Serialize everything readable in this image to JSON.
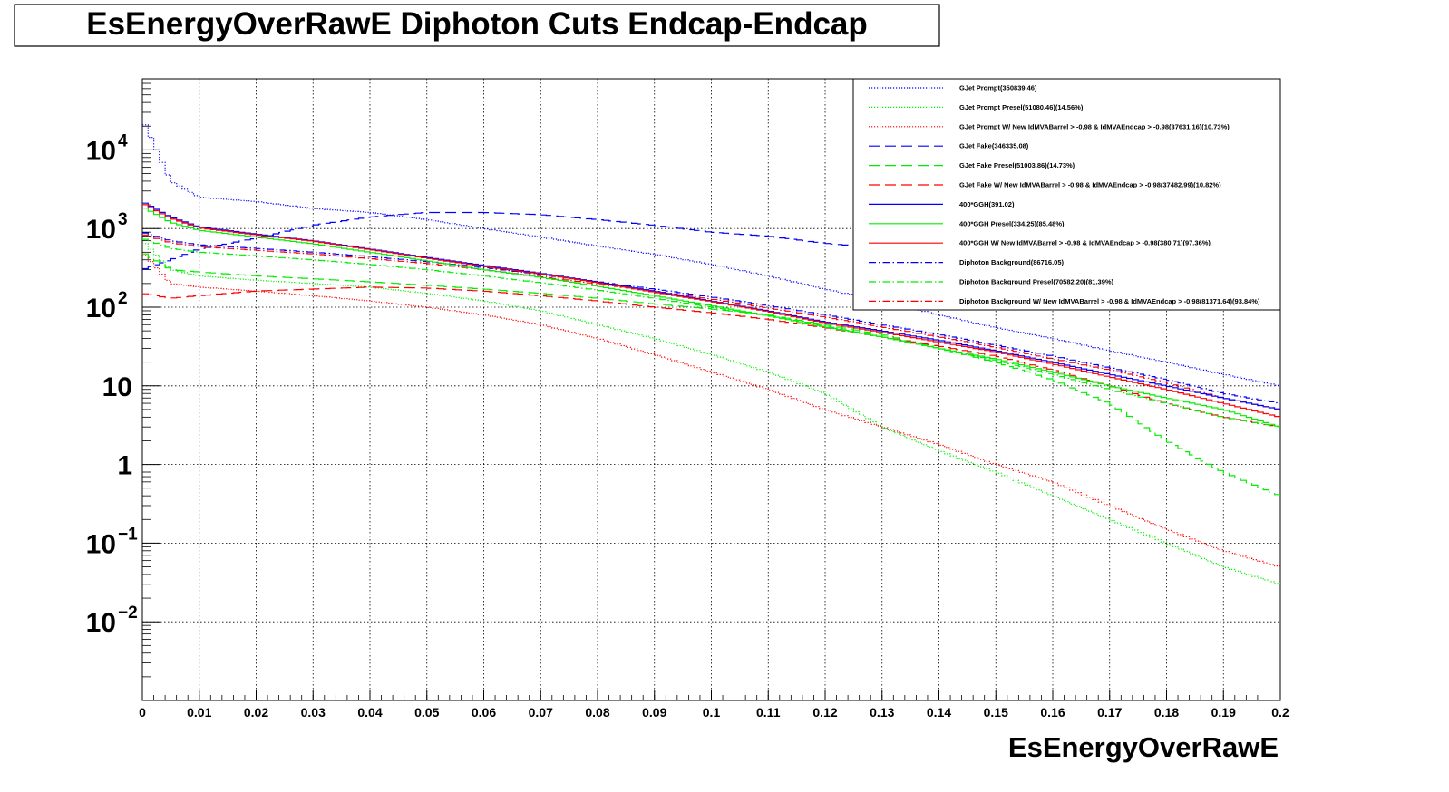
{
  "title": "EsEnergyOverRawE Diphoton Cuts Endcap-Endcap",
  "chart_data": {
    "type": "line",
    "subtype": "histogram-step",
    "title": "EsEnergyOverRawE Diphoton Cuts Endcap-Endcap",
    "xlabel": "EsEnergyOverRawE",
    "ylabel": "",
    "xlim": [
      0,
      0.2
    ],
    "ylim": [
      0.001,
      80000
    ],
    "yscale": "log",
    "grid": true,
    "legend_position": "top-right",
    "x_ticks": [
      "0",
      "0.01",
      "0.02",
      "0.03",
      "0.04",
      "0.05",
      "0.06",
      "0.07",
      "0.08",
      "0.09",
      "0.1",
      "0.11",
      "0.12",
      "0.13",
      "0.14",
      "0.15",
      "0.16",
      "0.17",
      "0.18",
      "0.19",
      "0.2"
    ],
    "y_ticks": [
      {
        "base": "10",
        "exp": "4",
        "value": 10000
      },
      {
        "base": "10",
        "exp": "3",
        "value": 1000
      },
      {
        "base": "10",
        "exp": "2",
        "value": 100
      },
      {
        "base": "10",
        "exp": "",
        "value": 10
      },
      {
        "base": "1",
        "exp": "",
        "value": 1
      },
      {
        "base": "10",
        "exp": "−1",
        "value": 0.1
      },
      {
        "base": "10",
        "exp": "−2",
        "value": 0.01
      }
    ],
    "series": [
      {
        "name": "GJet Prompt(350839.46)",
        "color": "#0000ff",
        "style": "dotted",
        "x": [
          0,
          0.005,
          0.01,
          0.02,
          0.03,
          0.04,
          0.05,
          0.06,
          0.07,
          0.08,
          0.09,
          0.1,
          0.11,
          0.12,
          0.13,
          0.14,
          0.15,
          0.16,
          0.17,
          0.18,
          0.19,
          0.2
        ],
        "y": [
          25000,
          4000,
          2500,
          2200,
          1800,
          1600,
          1300,
          1000,
          780,
          600,
          470,
          350,
          250,
          170,
          120,
          80,
          55,
          40,
          28,
          20,
          14,
          10
        ]
      },
      {
        "name": "GJet Prompt Presel(51080.46)(14.56%)",
        "color": "#00ee00",
        "style": "dotted",
        "x": [
          0,
          0.005,
          0.01,
          0.02,
          0.03,
          0.04,
          0.05,
          0.06,
          0.07,
          0.08,
          0.09,
          0.1,
          0.11,
          0.12,
          0.13,
          0.14,
          0.15,
          0.16,
          0.17,
          0.18,
          0.19,
          0.2
        ],
        "y": [
          700,
          300,
          250,
          220,
          200,
          180,
          150,
          120,
          90,
          60,
          40,
          25,
          15,
          8,
          3,
          1.5,
          0.8,
          0.4,
          0.2,
          0.1,
          0.05,
          0.03
        ]
      },
      {
        "name": "GJet Prompt W/ New IdMVABarrel > -0.98 & IdMVAEndcap > -0.98(37631.16)(10.73%)",
        "color": "#ff0000",
        "style": "dotted",
        "x": [
          0,
          0.005,
          0.01,
          0.02,
          0.03,
          0.04,
          0.05,
          0.06,
          0.07,
          0.08,
          0.09,
          0.1,
          0.11,
          0.12,
          0.13,
          0.14,
          0.15,
          0.16,
          0.17,
          0.18,
          0.19,
          0.2
        ],
        "y": [
          500,
          200,
          180,
          160,
          140,
          120,
          100,
          80,
          60,
          40,
          25,
          15,
          9,
          5,
          3,
          1.8,
          1,
          0.6,
          0.3,
          0.15,
          0.08,
          0.05
        ]
      },
      {
        "name": "GJet Fake(346335.08)",
        "color": "#0000ff",
        "style": "longdash",
        "x": [
          0,
          0.005,
          0.01,
          0.02,
          0.03,
          0.04,
          0.05,
          0.06,
          0.07,
          0.08,
          0.09,
          0.1,
          0.11,
          0.12,
          0.13,
          0.14,
          0.15,
          0.16,
          0.17,
          0.18,
          0.19,
          0.2
        ],
        "y": [
          300,
          400,
          550,
          750,
          1100,
          1400,
          1600,
          1600,
          1500,
          1300,
          1100,
          900,
          800,
          650,
          560,
          480,
          420,
          330,
          250,
          190,
          140,
          100
        ]
      },
      {
        "name": "GJet Fake Presel(51003.86)(14.73%)",
        "color": "#00ee00",
        "style": "longdash",
        "x": [
          0,
          0.005,
          0.01,
          0.02,
          0.03,
          0.04,
          0.05,
          0.06,
          0.07,
          0.08,
          0.09,
          0.1,
          0.11,
          0.12,
          0.13,
          0.14,
          0.15,
          0.16,
          0.17,
          0.18,
          0.19,
          0.2
        ],
        "y": [
          500,
          300,
          280,
          250,
          230,
          210,
          190,
          170,
          150,
          130,
          110,
          95,
          80,
          60,
          45,
          30,
          20,
          12,
          6,
          2,
          0.8,
          0.4
        ]
      },
      {
        "name": "GJet Fake W/ New IdMVABarrel > -0.98 & IdMVAEndcap > -0.98(37482.99)(10.82%)",
        "color": "#ff0000",
        "style": "longdash",
        "x": [
          0,
          0.005,
          0.01,
          0.02,
          0.03,
          0.04,
          0.05,
          0.06,
          0.07,
          0.08,
          0.09,
          0.1,
          0.11,
          0.12,
          0.13,
          0.14,
          0.15,
          0.16,
          0.17,
          0.18,
          0.19,
          0.2
        ],
        "y": [
          150,
          130,
          140,
          160,
          170,
          180,
          175,
          160,
          140,
          120,
          100,
          85,
          70,
          55,
          42,
          32,
          24,
          16,
          10,
          6,
          4,
          3
        ]
      },
      {
        "name": "400*GGH(391.02)",
        "color": "#0000ff",
        "style": "solid",
        "x": [
          0,
          0.005,
          0.01,
          0.02,
          0.03,
          0.04,
          0.05,
          0.06,
          0.07,
          0.08,
          0.09,
          0.1,
          0.11,
          0.12,
          0.13,
          0.14,
          0.15,
          0.16,
          0.17,
          0.18,
          0.19,
          0.2
        ],
        "y": [
          2200,
          1400,
          1050,
          850,
          700,
          550,
          430,
          340,
          270,
          210,
          160,
          120,
          90,
          65,
          50,
          38,
          28,
          20,
          14,
          10,
          7,
          5
        ]
      },
      {
        "name": "400*GGH Presel(334.25)(85.48%)",
        "color": "#00ee00",
        "style": "solid",
        "x": [
          0,
          0.005,
          0.01,
          0.02,
          0.03,
          0.04,
          0.05,
          0.06,
          0.07,
          0.08,
          0.09,
          0.1,
          0.11,
          0.12,
          0.13,
          0.14,
          0.15,
          0.16,
          0.17,
          0.18,
          0.19,
          0.2
        ],
        "y": [
          1900,
          1200,
          950,
          780,
          640,
          500,
          390,
          300,
          240,
          185,
          140,
          105,
          78,
          56,
          42,
          30,
          22,
          15,
          10,
          7,
          5,
          3
        ]
      },
      {
        "name": "400*GGH W/ New IdMVABarrel > -0.98 & IdMVAEndcap > -0.98(380.71)(97.36%)",
        "color": "#ff0000",
        "style": "solid",
        "x": [
          0,
          0.005,
          0.01,
          0.02,
          0.03,
          0.04,
          0.05,
          0.06,
          0.07,
          0.08,
          0.09,
          0.1,
          0.11,
          0.12,
          0.13,
          0.14,
          0.15,
          0.16,
          0.17,
          0.18,
          0.19,
          0.2
        ],
        "y": [
          2100,
          1350,
          1020,
          830,
          690,
          540,
          420,
          330,
          265,
          205,
          155,
          118,
          88,
          63,
          48,
          36,
          27,
          19,
          13,
          9,
          6,
          4
        ]
      },
      {
        "name": "Diphoton Background(86716.05)",
        "color": "#0000ff",
        "style": "dashdot",
        "x": [
          0,
          0.005,
          0.01,
          0.02,
          0.03,
          0.04,
          0.05,
          0.06,
          0.07,
          0.08,
          0.09,
          0.1,
          0.11,
          0.12,
          0.13,
          0.14,
          0.15,
          0.16,
          0.17,
          0.18,
          0.19,
          0.2
        ],
        "y": [
          900,
          700,
          620,
          560,
          500,
          440,
          380,
          320,
          260,
          210,
          170,
          135,
          105,
          80,
          60,
          45,
          33,
          24,
          17,
          12,
          8,
          6
        ]
      },
      {
        "name": "Diphoton Background Presel(70582.20)(81.39%)",
        "color": "#00ee00",
        "style": "dashdot",
        "x": [
          0,
          0.005,
          0.01,
          0.02,
          0.03,
          0.04,
          0.05,
          0.06,
          0.07,
          0.08,
          0.09,
          0.1,
          0.11,
          0.12,
          0.13,
          0.14,
          0.15,
          0.16,
          0.17,
          0.18,
          0.19,
          0.2
        ],
        "y": [
          750,
          560,
          500,
          450,
          400,
          350,
          300,
          250,
          205,
          165,
          130,
          100,
          78,
          58,
          42,
          30,
          21,
          14,
          9,
          6,
          4,
          3
        ]
      },
      {
        "name": "Diphoton Background W/ New IdMVABarrel > -0.98 & IdMVAEndcap > -0.98(81371.64)(93.84%)",
        "color": "#ff0000",
        "style": "dashdot",
        "x": [
          0,
          0.005,
          0.01,
          0.02,
          0.03,
          0.04,
          0.05,
          0.06,
          0.07,
          0.08,
          0.09,
          0.1,
          0.11,
          0.12,
          0.13,
          0.14,
          0.15,
          0.16,
          0.17,
          0.18,
          0.19,
          0.2
        ],
        "y": [
          850,
          660,
          590,
          530,
          475,
          415,
          360,
          300,
          245,
          197,
          160,
          127,
          98,
          75,
          56,
          42,
          31,
          22,
          16,
          11,
          7,
          5
        ]
      }
    ]
  }
}
